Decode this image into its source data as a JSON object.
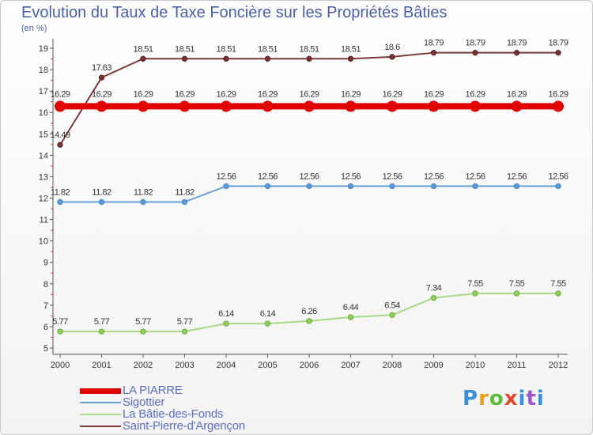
{
  "chart_data": {
    "type": "line",
    "title": "Evolution du Taux de Taxe Foncière sur les Propriétés Bâties",
    "unit_label": "(en %)",
    "x": [
      "2000",
      "2001",
      "2002",
      "2003",
      "2004",
      "2005",
      "2006",
      "2007",
      "2008",
      "2009",
      "2010",
      "2011",
      "2012"
    ],
    "ylim": [
      5,
      19
    ],
    "yticks": [
      "5",
      "6",
      "7",
      "8",
      "9",
      "10",
      "11",
      "12",
      "13",
      "14",
      "15",
      "16",
      "17",
      "18",
      "19"
    ],
    "grid": false,
    "legend_position": "bottom-left",
    "series": [
      {
        "name": "LA PIARRE",
        "color": "#e00000",
        "values": [
          16.29,
          16.29,
          16.29,
          16.29,
          16.29,
          16.29,
          16.29,
          16.29,
          16.29,
          16.29,
          16.29,
          16.29,
          16.29
        ],
        "labels": [
          "16.29",
          "16.29",
          "16.29",
          "16.29",
          "16.29",
          "16.29",
          "16.29",
          "16.29",
          "16.29",
          "16.29",
          "16.29",
          "16.29",
          "16.29"
        ]
      },
      {
        "name": "Sigottier",
        "color": "#6b9fd6",
        "values": [
          11.82,
          11.82,
          11.82,
          11.82,
          12.56,
          12.56,
          12.56,
          12.56,
          12.56,
          12.56,
          12.56,
          12.56,
          12.56
        ],
        "labels": [
          "11.82",
          "11.82",
          "11.82",
          "11.82",
          "12.56",
          "12.56",
          "12.56",
          "12.56",
          "12.56",
          "12.56",
          "12.56",
          "12.56",
          "12.56"
        ]
      },
      {
        "name": "La Bâtie-des-Fonds",
        "color": "#a8d888",
        "values": [
          5.77,
          5.77,
          5.77,
          5.77,
          6.14,
          6.14,
          6.26,
          6.44,
          6.54,
          7.34,
          7.55,
          7.55,
          7.55
        ],
        "labels": [
          "5.77",
          "5.77",
          "5.77",
          "5.77",
          "6.14",
          "6.14",
          "6.26",
          "6.44",
          "6.54",
          "7.34",
          "7.55",
          "7.55",
          "7.55"
        ]
      },
      {
        "name": "Saint-Pierre-d'Argençon",
        "color": "#7a3a3a",
        "values": [
          14.49,
          17.63,
          18.51,
          18.51,
          18.51,
          18.51,
          18.51,
          18.51,
          18.6,
          18.79,
          18.79,
          18.79,
          18.79
        ],
        "labels": [
          "14.49",
          "17.63",
          "18.51",
          "18.51",
          "18.51",
          "18.51",
          "18.51",
          "18.51",
          "18.6",
          "18.79",
          "18.79",
          "18.79",
          "18.79"
        ]
      }
    ]
  },
  "logo": {
    "text": "Proxiti"
  }
}
